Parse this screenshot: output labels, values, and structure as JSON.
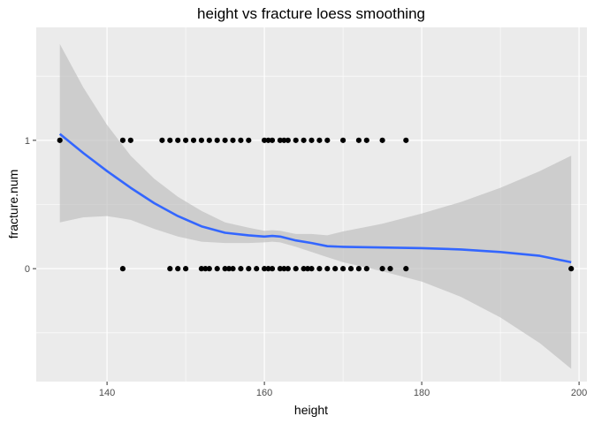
{
  "chart_data": {
    "type": "scatter",
    "title": "height vs fracture loess smoothing",
    "xlabel": "height",
    "ylabel": "fracture.num",
    "xlim": [
      131,
      201
    ],
    "ylim": [
      -0.88,
      1.88
    ],
    "x_ticks": [
      140,
      160,
      180,
      200
    ],
    "y_ticks": [
      0,
      1
    ],
    "x_tick_labels": [
      "140",
      "160",
      "180",
      "200"
    ],
    "y_tick_labels": [
      "0",
      "1"
    ],
    "grid": true,
    "background": "#ebebeb",
    "gridline_color": "#ffffff",
    "point_color": "#000000",
    "smooth_color": "#3366ff",
    "ribbon_color": "#bdbdbd",
    "points": [
      {
        "x": 134,
        "y": 1
      },
      {
        "x": 142,
        "y": 1
      },
      {
        "x": 143,
        "y": 1
      },
      {
        "x": 147,
        "y": 1
      },
      {
        "x": 148,
        "y": 1
      },
      {
        "x": 149,
        "y": 1
      },
      {
        "x": 150,
        "y": 1
      },
      {
        "x": 151,
        "y": 1
      },
      {
        "x": 152,
        "y": 1
      },
      {
        "x": 153,
        "y": 1
      },
      {
        "x": 154,
        "y": 1
      },
      {
        "x": 155,
        "y": 1
      },
      {
        "x": 156,
        "y": 1
      },
      {
        "x": 157,
        "y": 1
      },
      {
        "x": 158,
        "y": 1
      },
      {
        "x": 160,
        "y": 1
      },
      {
        "x": 160.5,
        "y": 1
      },
      {
        "x": 161,
        "y": 1
      },
      {
        "x": 162,
        "y": 1
      },
      {
        "x": 162.5,
        "y": 1
      },
      {
        "x": 163,
        "y": 1
      },
      {
        "x": 164,
        "y": 1
      },
      {
        "x": 165,
        "y": 1
      },
      {
        "x": 166,
        "y": 1
      },
      {
        "x": 167,
        "y": 1
      },
      {
        "x": 168,
        "y": 1
      },
      {
        "x": 170,
        "y": 1
      },
      {
        "x": 172,
        "y": 1
      },
      {
        "x": 173,
        "y": 1
      },
      {
        "x": 175,
        "y": 1
      },
      {
        "x": 178,
        "y": 1
      },
      {
        "x": 142,
        "y": 0
      },
      {
        "x": 148,
        "y": 0
      },
      {
        "x": 149,
        "y": 0
      },
      {
        "x": 150,
        "y": 0
      },
      {
        "x": 152,
        "y": 0
      },
      {
        "x": 152.5,
        "y": 0
      },
      {
        "x": 153,
        "y": 0
      },
      {
        "x": 154,
        "y": 0
      },
      {
        "x": 155,
        "y": 0
      },
      {
        "x": 155.5,
        "y": 0
      },
      {
        "x": 156,
        "y": 0
      },
      {
        "x": 157,
        "y": 0
      },
      {
        "x": 158,
        "y": 0
      },
      {
        "x": 159,
        "y": 0
      },
      {
        "x": 160,
        "y": 0
      },
      {
        "x": 160.5,
        "y": 0
      },
      {
        "x": 161,
        "y": 0
      },
      {
        "x": 162,
        "y": 0
      },
      {
        "x": 162.5,
        "y": 0
      },
      {
        "x": 163,
        "y": 0
      },
      {
        "x": 164,
        "y": 0
      },
      {
        "x": 165,
        "y": 0
      },
      {
        "x": 165.5,
        "y": 0
      },
      {
        "x": 166,
        "y": 0
      },
      {
        "x": 167,
        "y": 0
      },
      {
        "x": 168,
        "y": 0
      },
      {
        "x": 169,
        "y": 0
      },
      {
        "x": 170,
        "y": 0
      },
      {
        "x": 171,
        "y": 0
      },
      {
        "x": 172,
        "y": 0
      },
      {
        "x": 173,
        "y": 0
      },
      {
        "x": 175,
        "y": 0
      },
      {
        "x": 176,
        "y": 0
      },
      {
        "x": 178,
        "y": 0
      },
      {
        "x": 199,
        "y": 0
      }
    ],
    "smooth": {
      "x": [
        134,
        137,
        140,
        143,
        146,
        149,
        152,
        155,
        158,
        160,
        161,
        162,
        164,
        166,
        168,
        170,
        175,
        180,
        185,
        190,
        195,
        199
      ],
      "y": [
        1.05,
        0.9,
        0.76,
        0.63,
        0.51,
        0.41,
        0.33,
        0.28,
        0.26,
        0.25,
        0.255,
        0.25,
        0.22,
        0.2,
        0.175,
        0.17,
        0.165,
        0.16,
        0.15,
        0.13,
        0.1,
        0.05
      ],
      "lower": [
        0.36,
        0.4,
        0.41,
        0.38,
        0.31,
        0.25,
        0.21,
        0.2,
        0.2,
        0.205,
        0.21,
        0.205,
        0.17,
        0.13,
        0.09,
        0.05,
        -0.02,
        -0.1,
        -0.22,
        -0.38,
        -0.58,
        -0.78
      ],
      "upper": [
        1.75,
        1.41,
        1.12,
        0.88,
        0.7,
        0.56,
        0.45,
        0.36,
        0.32,
        0.295,
        0.3,
        0.295,
        0.27,
        0.27,
        0.26,
        0.29,
        0.35,
        0.43,
        0.52,
        0.63,
        0.76,
        0.88
      ]
    }
  }
}
